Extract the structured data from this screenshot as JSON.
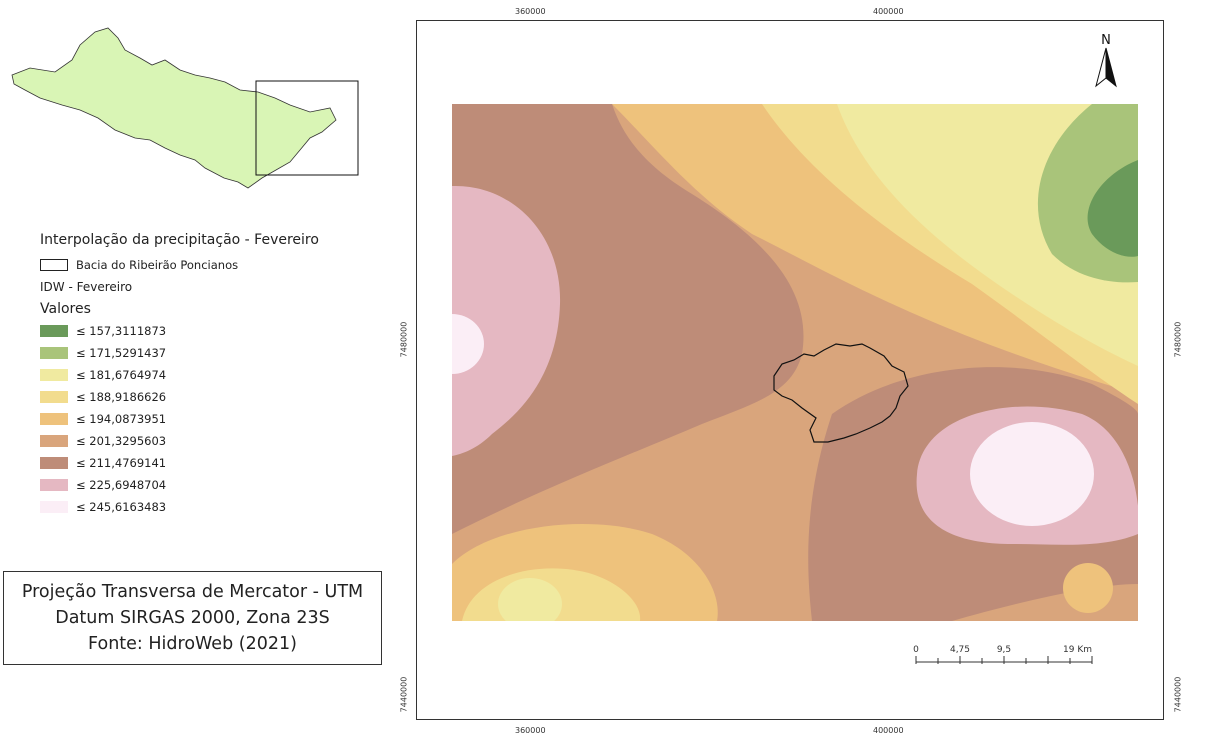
{
  "locator": {
    "extent_box": true
  },
  "legend": {
    "title": "Interpolação da precipitação - Fevereiro",
    "boundary_label": "Bacia do Ribeirão Poncianos",
    "layer_label": "IDW - Fevereiro",
    "values_label": "Valores",
    "classes": [
      {
        "label": "≤ 157,3111873",
        "color": "#6a9a5a"
      },
      {
        "label": "≤ 171,5291437",
        "color": "#a9c47a"
      },
      {
        "label": "≤ 181,6764974",
        "color": "#f0eaa0"
      },
      {
        "label": "≤ 188,9186626",
        "color": "#f2dc8e"
      },
      {
        "label": "≤ 194,0873951",
        "color": "#eec27c"
      },
      {
        "label": "≤ 201,3295603",
        "color": "#d9a57c"
      },
      {
        "label": "≤ 211,4769141",
        "color": "#be8c78"
      },
      {
        "label": "≤ 225,6948704",
        "color": "#e5b8c2"
      },
      {
        "label": "≤ 245,6163483",
        "color": "#fbeef6"
      }
    ]
  },
  "projection": {
    "line1": "Projeção Transversa de Mercator - UTM",
    "line2": "Datum SIRGAS 2000, Zona 23S",
    "line3": "Fonte: HidroWeb (2021)"
  },
  "grid": {
    "x_top": [
      "360000",
      "400000"
    ],
    "x_bottom": [
      "360000",
      "400000"
    ],
    "y_left": [
      "7480000",
      "7440000"
    ],
    "y_right": [
      "7480000",
      "7440000"
    ]
  },
  "north": {
    "label": "N"
  },
  "scale": {
    "labels": [
      "0",
      "4,75",
      "9,5",
      "19 Km"
    ]
  }
}
